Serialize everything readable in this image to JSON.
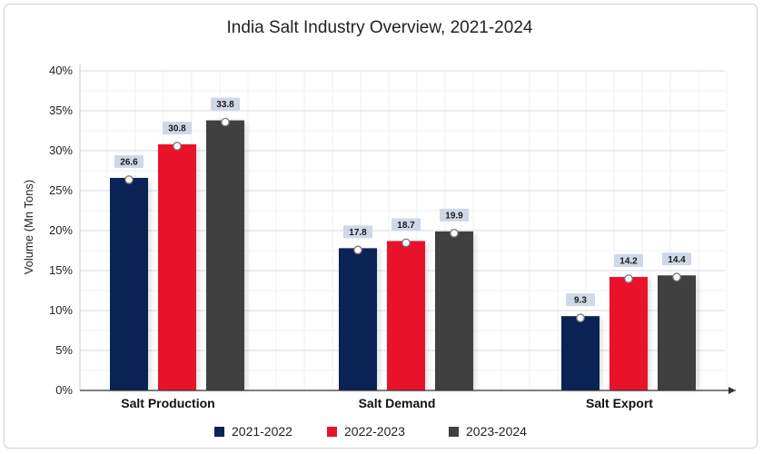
{
  "chart_data": {
    "type": "bar",
    "title": "India Salt Industry Overview, 2021-2024",
    "ylabel": "Volume (Mn Tons)",
    "xlabel": "",
    "categories": [
      "Salt Production",
      "Salt Demand",
      "Salt Export"
    ],
    "yticks": [
      "0%",
      "5%",
      "10%",
      "15%",
      "20%",
      "25%",
      "30%",
      "35%",
      "40%"
    ],
    "ylim": [
      0,
      40
    ],
    "grid": true,
    "legend_position": "bottom",
    "series": [
      {
        "name": "2021-2022",
        "color": "#0b2255",
        "values": [
          26.6,
          17.8,
          9.3
        ],
        "labels": [
          "26.6",
          "17.8",
          "9.3"
        ]
      },
      {
        "name": "2022-2023",
        "color": "#e8132b",
        "values": [
          30.8,
          18.7,
          14.2
        ],
        "labels": [
          "30.8",
          "18.7",
          "14.2"
        ]
      },
      {
        "name": "2023-2024",
        "color": "#404040",
        "values": [
          33.8,
          19.9,
          14.4
        ],
        "labels": [
          "33.8",
          "19.9",
          "14.4"
        ]
      }
    ]
  }
}
